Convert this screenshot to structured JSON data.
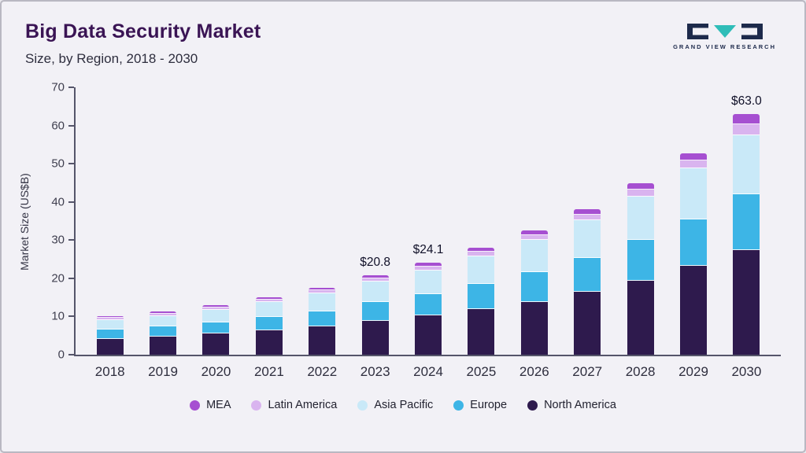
{
  "header": {
    "title": "Big Data Security Market",
    "subtitle": "Size, by Region, 2018 - 2030"
  },
  "logo": {
    "text": "GRAND VIEW RESEARCH",
    "navy": "#1d2a4b",
    "teal": "#2fbdb8"
  },
  "chart_data": {
    "type": "bar",
    "stacked": true,
    "title": "Big Data Security Market",
    "subtitle": "Size, by Region, 2018 - 2030",
    "xlabel": "",
    "ylabel": "Market Size (US$B)",
    "ylim": [
      0,
      70
    ],
    "yticks": [
      0,
      10,
      20,
      30,
      40,
      50,
      60,
      70
    ],
    "grid": false,
    "legend_position": "bottom",
    "categories": [
      "2018",
      "2019",
      "2020",
      "2021",
      "2022",
      "2023",
      "2024",
      "2025",
      "2026",
      "2027",
      "2028",
      "2029",
      "2030"
    ],
    "series": [
      {
        "name": "North America",
        "color": "#2e1a4d",
        "values": [
          4.2,
          4.8,
          5.5,
          6.4,
          7.4,
          8.8,
          10.2,
          11.9,
          13.9,
          16.4,
          19.4,
          23.2,
          27.4
        ]
      },
      {
        "name": "Europe",
        "color": "#3db5e6",
        "values": [
          2.4,
          2.7,
          3.0,
          3.4,
          4.0,
          4.9,
          5.7,
          6.6,
          7.7,
          9.0,
          10.6,
          12.3,
          14.6
        ]
      },
      {
        "name": "Asia Pacific",
        "color": "#c9e9f8",
        "values": [
          2.4,
          2.6,
          3.2,
          3.9,
          4.6,
          5.4,
          6.2,
          7.2,
          8.4,
          9.8,
          11.4,
          13.2,
          15.5
        ]
      },
      {
        "name": "Latin America",
        "color": "#d9b4ef",
        "values": [
          0.6,
          0.6,
          0.7,
          0.7,
          0.8,
          0.9,
          1.0,
          1.2,
          1.3,
          1.5,
          1.8,
          2.1,
          2.8
        ]
      },
      {
        "name": "MEA",
        "color": "#a64fd1",
        "values": [
          0.5,
          0.6,
          0.6,
          0.7,
          0.7,
          0.8,
          1.0,
          1.1,
          1.2,
          1.4,
          1.7,
          2.0,
          2.7
        ]
      }
    ],
    "annotations": [
      {
        "category": "2023",
        "text": "$20.8"
      },
      {
        "category": "2024",
        "text": "$24.1"
      },
      {
        "category": "2030",
        "text": "$63.0"
      }
    ],
    "legend": [
      {
        "label": "MEA",
        "color": "#a64fd1"
      },
      {
        "label": "Latin America",
        "color": "#d9b4ef"
      },
      {
        "label": "Asia Pacific",
        "color": "#c9e9f8"
      },
      {
        "label": "Europe",
        "color": "#3db5e6"
      },
      {
        "label": "North America",
        "color": "#2e1a4d"
      }
    ]
  }
}
